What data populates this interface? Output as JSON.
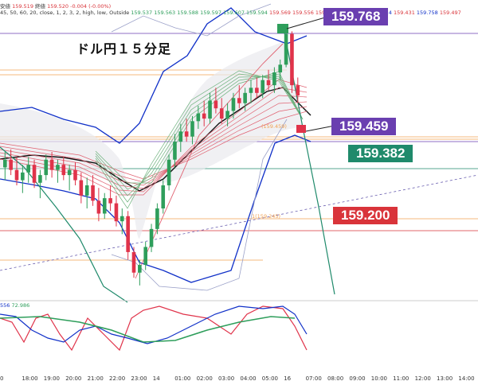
{
  "header": {
    "line1_prefix": "安値",
    "line1_low": "159.519",
    "line1_close_label": "終値",
    "line1_close": "159.520",
    "line1_change": "-0.004 (-0.00%)",
    "line2_params": "45, 50, 60, 20, close, 1, 2, 3, 2, high, low, Outside",
    "line2_values": [
      "159.537",
      "159.563",
      "159.588",
      "159.597",
      "159.607",
      "159.594",
      "159.569",
      "159.556",
      "159.543"
    ],
    "line2_values_right": [
      "159.824",
      "159.431",
      "159.758",
      "159.497"
    ]
  },
  "title": "ドル円１５分足",
  "price_badges": [
    {
      "label": "159.768",
      "color": "#6a3fb0"
    },
    {
      "label": "159.459",
      "color": "#6a3fb0"
    },
    {
      "label": "159.382",
      "color": "#1f8a6b"
    },
    {
      "label": "159.200",
      "color": "#d9343a"
    }
  ],
  "annotations": {
    "fib_small": "1(159.245)",
    "box_small": "(159.459)"
  },
  "oscillator": {
    "value_a": "556",
    "value_b": "72.986"
  },
  "colors": {
    "up": "#2e9e5b",
    "down": "#e0334a",
    "bollinger": "#1030c8",
    "ma_black": "#111111",
    "purple_line": "#6a3fb0",
    "teal_line": "#1f8a6b",
    "red_line": "#d9343a",
    "orange_line": "#f0a050"
  },
  "chart_data": {
    "type": "candlestick",
    "x_tick_labels": [
      "0",
      "18:00",
      "19:00",
      "20:00",
      "21:00",
      "22:00",
      "23:00",
      "14",
      "01:00",
      "02:00",
      "03:00",
      "04:00",
      "05:00",
      "16",
      "07:00",
      "08:00",
      "09:00",
      "10:00",
      "11:00",
      "12:00",
      "13:00",
      "14:00"
    ],
    "price_levels": [
      159.768,
      159.459,
      159.382,
      159.2
    ],
    "candles": [
      {
        "o": 158.72,
        "h": 158.84,
        "l": 158.62,
        "c": 158.78
      },
      {
        "o": 158.78,
        "h": 158.86,
        "l": 158.66,
        "c": 158.7
      },
      {
        "o": 158.7,
        "h": 158.8,
        "l": 158.58,
        "c": 158.62
      },
      {
        "o": 158.62,
        "h": 158.74,
        "l": 158.52,
        "c": 158.68
      },
      {
        "o": 158.68,
        "h": 158.8,
        "l": 158.6,
        "c": 158.74
      },
      {
        "o": 158.74,
        "h": 158.78,
        "l": 158.56,
        "c": 158.6
      },
      {
        "o": 158.6,
        "h": 158.7,
        "l": 158.48,
        "c": 158.66
      },
      {
        "o": 158.66,
        "h": 158.82,
        "l": 158.62,
        "c": 158.78
      },
      {
        "o": 158.78,
        "h": 158.84,
        "l": 158.64,
        "c": 158.7
      },
      {
        "o": 158.7,
        "h": 158.78,
        "l": 158.6,
        "c": 158.74
      },
      {
        "o": 158.74,
        "h": 158.8,
        "l": 158.62,
        "c": 158.66
      },
      {
        "o": 158.66,
        "h": 158.74,
        "l": 158.54,
        "c": 158.7
      },
      {
        "o": 158.7,
        "h": 158.76,
        "l": 158.58,
        "c": 158.62
      },
      {
        "o": 158.62,
        "h": 158.68,
        "l": 158.44,
        "c": 158.5
      },
      {
        "o": 158.5,
        "h": 158.64,
        "l": 158.4,
        "c": 158.58
      },
      {
        "o": 158.58,
        "h": 158.66,
        "l": 158.42,
        "c": 158.46
      },
      {
        "o": 158.46,
        "h": 158.56,
        "l": 158.3,
        "c": 158.36
      },
      {
        "o": 158.36,
        "h": 158.52,
        "l": 158.32,
        "c": 158.48
      },
      {
        "o": 158.48,
        "h": 158.58,
        "l": 158.38,
        "c": 158.44
      },
      {
        "o": 158.44,
        "h": 158.5,
        "l": 158.26,
        "c": 158.3
      },
      {
        "o": 158.3,
        "h": 158.4,
        "l": 158.2,
        "c": 158.34
      },
      {
        "o": 158.34,
        "h": 158.38,
        "l": 158.0,
        "c": 158.06
      },
      {
        "o": 158.06,
        "h": 158.1,
        "l": 157.86,
        "c": 157.9
      },
      {
        "o": 157.9,
        "h": 158.0,
        "l": 157.8,
        "c": 157.96
      },
      {
        "o": 157.96,
        "h": 158.14,
        "l": 157.92,
        "c": 158.1
      },
      {
        "o": 158.1,
        "h": 158.28,
        "l": 158.06,
        "c": 158.24
      },
      {
        "o": 158.24,
        "h": 158.44,
        "l": 158.2,
        "c": 158.4
      },
      {
        "o": 158.4,
        "h": 158.62,
        "l": 158.36,
        "c": 158.58
      },
      {
        "o": 158.58,
        "h": 158.82,
        "l": 158.54,
        "c": 158.78
      },
      {
        "o": 158.78,
        "h": 158.98,
        "l": 158.72,
        "c": 158.92
      },
      {
        "o": 158.92,
        "h": 159.06,
        "l": 158.84,
        "c": 159.0
      },
      {
        "o": 159.0,
        "h": 159.1,
        "l": 158.92,
        "c": 158.96
      },
      {
        "o": 158.96,
        "h": 159.12,
        "l": 158.9,
        "c": 159.08
      },
      {
        "o": 159.08,
        "h": 159.2,
        "l": 159.02,
        "c": 159.14
      },
      {
        "o": 159.14,
        "h": 159.24,
        "l": 159.04,
        "c": 159.1
      },
      {
        "o": 159.1,
        "h": 159.3,
        "l": 159.06,
        "c": 159.24
      },
      {
        "o": 159.24,
        "h": 159.34,
        "l": 159.14,
        "c": 159.18
      },
      {
        "o": 159.18,
        "h": 159.26,
        "l": 159.06,
        "c": 159.1
      },
      {
        "o": 159.1,
        "h": 159.22,
        "l": 159.04,
        "c": 159.16
      },
      {
        "o": 159.16,
        "h": 159.3,
        "l": 159.1,
        "c": 159.26
      },
      {
        "o": 159.26,
        "h": 159.36,
        "l": 159.18,
        "c": 159.22
      },
      {
        "o": 159.22,
        "h": 159.34,
        "l": 159.16,
        "c": 159.3
      },
      {
        "o": 159.3,
        "h": 159.4,
        "l": 159.22,
        "c": 159.34
      },
      {
        "o": 159.34,
        "h": 159.42,
        "l": 159.26,
        "c": 159.3
      },
      {
        "o": 159.3,
        "h": 159.44,
        "l": 159.26,
        "c": 159.4
      },
      {
        "o": 159.4,
        "h": 159.48,
        "l": 159.32,
        "c": 159.36
      },
      {
        "o": 159.36,
        "h": 159.5,
        "l": 159.3,
        "c": 159.46
      },
      {
        "o": 159.46,
        "h": 159.56,
        "l": 159.4,
        "c": 159.52
      },
      {
        "o": 159.52,
        "h": 159.8,
        "l": 159.5,
        "c": 159.76
      },
      {
        "o": 159.76,
        "h": 159.78,
        "l": 159.3,
        "c": 159.36
      },
      {
        "o": 159.36,
        "h": 159.42,
        "l": 159.22,
        "c": 159.28
      }
    ]
  }
}
